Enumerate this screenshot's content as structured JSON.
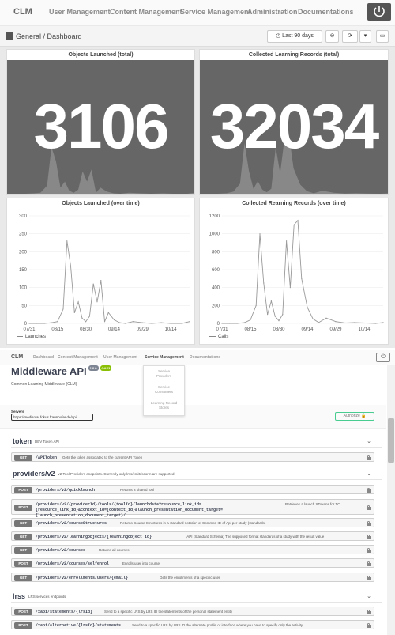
{
  "top": {
    "brand": "CLM",
    "nav": [
      "User Management",
      "Content Management",
      "Service Management",
      "Administration",
      "Documentations"
    ],
    "breadcrumb": "General  /  Dashboard",
    "time_range": "Last 90 days"
  },
  "panels": {
    "launched_total": {
      "title": "Objects Launched (total)",
      "value": "3106"
    },
    "records_total": {
      "title": "Collected Learning Records (total)",
      "value": "32034"
    },
    "launched_time": {
      "title": "Objects Launched (over time)",
      "legend": "Launches"
    },
    "records_time": {
      "title": "Collected Rearning Records (over time)",
      "legend": "Calls"
    }
  },
  "chart_data": [
    {
      "type": "line",
      "title": "Objects Launched (over time)",
      "x": [
        "07/31",
        "08/04",
        "08/08",
        "08/12",
        "08/15",
        "08/18",
        "08/20",
        "08/22",
        "08/24",
        "08/26",
        "08/28",
        "08/30",
        "09/01",
        "09/03",
        "09/05",
        "09/07",
        "09/09",
        "09/11",
        "09/14",
        "09/17",
        "09/20",
        "09/24",
        "09/29",
        "10/04",
        "10/09",
        "10/14",
        "10/20",
        "10/24"
      ],
      "series": [
        {
          "name": "Launches",
          "values": [
            0,
            0,
            0,
            2,
            5,
            40,
            230,
            160,
            30,
            60,
            15,
            5,
            20,
            110,
            60,
            120,
            5,
            30,
            10,
            2,
            0,
            5,
            2,
            0,
            2,
            0,
            0,
            5
          ]
        }
      ],
      "x_ticks": [
        "07/31",
        "08/15",
        "08/30",
        "09/14",
        "09/29",
        "10/14"
      ],
      "ylim": [
        0,
        300
      ],
      "y_ticks": [
        "0",
        "50",
        "100",
        "150",
        "200",
        "250",
        "300"
      ]
    },
    {
      "type": "line",
      "title": "Collected Rearning Records (over time)",
      "x": [
        "07/31",
        "08/04",
        "08/08",
        "08/12",
        "08/15",
        "08/18",
        "08/20",
        "08/22",
        "08/24",
        "08/26",
        "08/28",
        "08/30",
        "09/01",
        "09/03",
        "09/05",
        "09/07",
        "09/09",
        "09/11",
        "09/14",
        "09/17",
        "09/20",
        "09/24",
        "09/29",
        "10/04",
        "10/09",
        "10/14",
        "10/20",
        "10/24"
      ],
      "series": [
        {
          "name": "Calls",
          "values": [
            0,
            0,
            0,
            10,
            40,
            200,
            1000,
            450,
            100,
            250,
            80,
            30,
            100,
            920,
            400,
            1100,
            1150,
            500,
            180,
            50,
            10,
            60,
            20,
            5,
            10,
            5,
            0,
            10
          ]
        }
      ],
      "x_ticks": [
        "07/31",
        "08/15",
        "08/30",
        "09/14",
        "09/29",
        "10/14"
      ],
      "ylim": [
        0,
        1200
      ],
      "y_ticks": [
        "0",
        "200",
        "400",
        "600",
        "800",
        "1000",
        "1200"
      ]
    }
  ],
  "swagger": {
    "brand": "CLM",
    "nav": [
      "Dashboard",
      "Content Management",
      "User Management",
      "Service Management",
      "Documentations"
    ],
    "dropdown": [
      "Service\nProviders",
      "Service\nConsumers",
      "Learning Record\nStores"
    ],
    "title": "Middleware API",
    "version": "1.0.0",
    "oas": "OAS3",
    "subtitle": "Common Learning Middleware (CLM)",
    "servers_label": "Servers",
    "server_url": "https://medisolar.fokus.fraunhofer.de/api",
    "authorize": "Authorize",
    "tags": [
      {
        "name": "token",
        "desc": "DEV Token API"
      },
      {
        "name": "providers/v2",
        "desc": "v2 Tool Providers endpoints. Currently only lms/cmi5/scorm are supported"
      },
      {
        "name": "lrss",
        "desc": "LRS services endpoints"
      }
    ],
    "ops": [
      {
        "method": "GET",
        "path": "/APIToken",
        "summary": "Gets the token associated to the current API Token"
      },
      {
        "method": "POST",
        "path": "/providers/v2/quicklaunch",
        "summary": "Returns a shared tool"
      },
      {
        "method": "POST",
        "path": "/providers/v2/{providerId}/tools/{toolId}/launchdata?resource_link_id={resource_link_id}&context_id={context_id}&launch_presentation_document_target={launch_presentation_document_target}/",
        "summary": "Retrieves a launch XTokens for TC"
      },
      {
        "method": "GET",
        "path": "/providers/v2/courseStructures",
        "summary": "Returns Course Structures in a standard notation of Common ID of Api per study (standards)"
      },
      {
        "method": "GET",
        "path": "/providers/v2/learningobjects/{learningobject id}",
        "summary": "[API (Standard Schema) The supposed format standards of a study with the result value"
      },
      {
        "method": "GET",
        "path": "/providers/v2/courses",
        "summary": "Returns all courses"
      },
      {
        "method": "POST",
        "path": "/providers/v2/courses/selfenrol",
        "summary": "Enrolls user into course"
      },
      {
        "method": "GET",
        "path": "/providers/v2/enrollments/users/{email}",
        "summary": "Gets the enrollments of a specific user"
      },
      {
        "method": "POST",
        "path": "/xapi/statements/{lrsId}",
        "summary": "Send to a specific LRS by LRS ID the statements of the personal statement entity"
      },
      {
        "method": "POST",
        "path": "/xapi/alternative/{lrsId}/statements",
        "summary": "Send to a specific LRS by LRS ID the alternate profile or interface where you have to specify only the activity"
      }
    ]
  }
}
